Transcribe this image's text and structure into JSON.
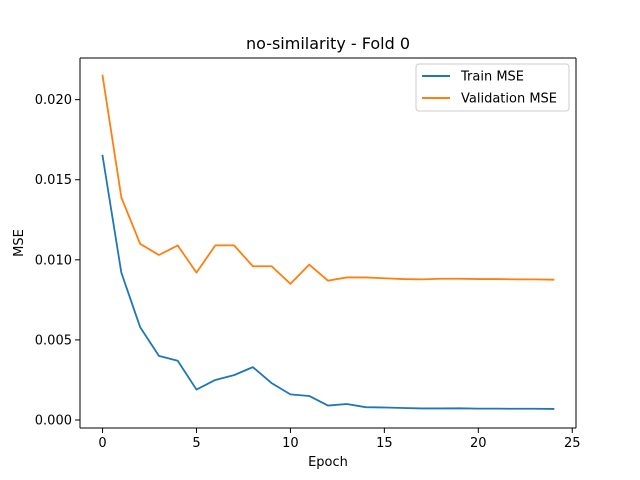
{
  "chart_data": {
    "type": "line",
    "title": "no-similarity - Fold 0",
    "xlabel": "Epoch",
    "ylabel": "MSE",
    "xlim": [
      -1.2,
      25.2
    ],
    "ylim": [
      -0.0005,
      0.0226
    ],
    "x_ticks": [
      0,
      5,
      10,
      15,
      20,
      25
    ],
    "x_tick_labels": [
      "0",
      "5",
      "10",
      "15",
      "20",
      "25"
    ],
    "y_ticks": [
      0.0,
      0.005,
      0.01,
      0.015,
      0.02
    ],
    "y_tick_labels": [
      "0.000",
      "0.005",
      "0.010",
      "0.015",
      "0.020"
    ],
    "grid": false,
    "legend_position": "top-right",
    "x": [
      0,
      1,
      2,
      3,
      4,
      5,
      6,
      7,
      8,
      9,
      10,
      11,
      12,
      13,
      14,
      15,
      16,
      17,
      18,
      19,
      20,
      21,
      22,
      23,
      24
    ],
    "series": [
      {
        "name": "Train MSE",
        "color": "#1f77b4",
        "values": [
          0.0165,
          0.0092,
          0.0058,
          0.004,
          0.0037,
          0.0019,
          0.0025,
          0.0028,
          0.0033,
          0.0023,
          0.0016,
          0.0015,
          0.0009,
          0.001,
          0.0008,
          0.00078,
          0.00075,
          0.00072,
          0.00072,
          0.00073,
          0.00071,
          0.00071,
          0.0007,
          0.0007,
          0.00069
        ]
      },
      {
        "name": "Validation MSE",
        "color": "#ff7f0e",
        "values": [
          0.0215,
          0.0139,
          0.011,
          0.0103,
          0.0109,
          0.0092,
          0.0109,
          0.0109,
          0.0096,
          0.0096,
          0.0085,
          0.0097,
          0.0087,
          0.0089,
          0.0089,
          0.00885,
          0.0088,
          0.00878,
          0.00882,
          0.00882,
          0.0088,
          0.0088,
          0.00878,
          0.00878,
          0.00876
        ]
      }
    ]
  }
}
